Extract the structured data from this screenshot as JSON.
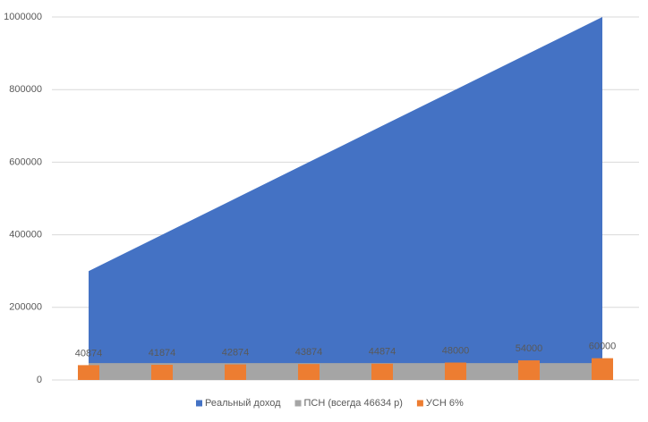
{
  "chart_data": {
    "type": "combo",
    "categories": [
      null,
      null,
      null,
      null,
      null,
      null,
      null,
      null
    ],
    "series": [
      {
        "name": "Реальный доход",
        "type": "area",
        "color": "#4472c4",
        "values": [
          300000,
          400000,
          500000,
          600000,
          700000,
          800000,
          900000,
          1000000
        ]
      },
      {
        "name": "ПСН (всегда 46634 р)",
        "type": "area",
        "color": "#a5a5a5",
        "values": [
          46634,
          46634,
          46634,
          46634,
          46634,
          46634,
          46634,
          46634
        ]
      },
      {
        "name": "УСН 6%",
        "type": "bar",
        "color": "#ed7d31",
        "values": [
          40874,
          41874,
          42874,
          43874,
          44874,
          48000,
          54000,
          60000
        ],
        "data_labels": true
      }
    ],
    "ylim": [
      0,
      1000000
    ],
    "yticks": [
      0,
      200000,
      400000,
      600000,
      800000,
      1000000
    ],
    "grid": true,
    "legend": "bottom"
  }
}
